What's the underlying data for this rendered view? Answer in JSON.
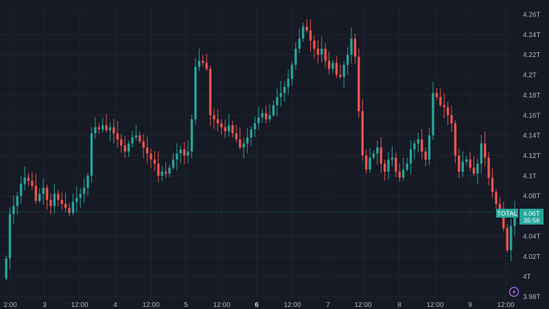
{
  "colors": {
    "background": "#161a25",
    "grid": "#1f2430",
    "up": "#26a69a",
    "down": "#ef5350",
    "axis_text": "#b2b5be",
    "badge_bg": "#26a69a",
    "logo": "#b86bf0"
  },
  "chart_data": {
    "type": "candlestick",
    "title": "",
    "series_label": "TOTAL",
    "last_value_label": "4.06T",
    "countdown": "35:56",
    "last_value": 4.064,
    "y_unit": "T",
    "ylim": [
      3.98,
      4.26
    ],
    "y_ticks": [
      3.98,
      4,
      4.02,
      4.04,
      4.06,
      4.08,
      4.1,
      4.12,
      4.14,
      4.16,
      4.18,
      4.2,
      4.22,
      4.24,
      4.26
    ],
    "y_tick_labels": [
      "3.98T",
      "4T",
      "4.02T",
      "4.04T",
      "4.06T",
      "4.08T",
      "4.1T",
      "4.12T",
      "4.14T",
      "4.16T",
      "4.18T",
      "4.2T",
      "4.22T",
      "4.24T",
      "4.26T"
    ],
    "x_tick_labels": [
      "2:00",
      "3",
      "12:00",
      "4",
      "12:00",
      "5",
      "12:00",
      "6",
      "12:00",
      "7",
      "12:00",
      "8",
      "12:00",
      "9",
      "12:00"
    ],
    "x_tick_bold": [
      false,
      false,
      false,
      false,
      false,
      false,
      false,
      true,
      false,
      false,
      false,
      false,
      false,
      false,
      false
    ],
    "grid": true,
    "close_series": [
      4.018,
      4.062,
      4.07,
      4.08,
      4.092,
      4.098,
      4.095,
      4.09,
      4.075,
      4.082,
      4.088,
      4.076,
      4.07,
      4.082,
      4.076,
      4.072,
      4.068,
      4.063,
      4.074,
      4.078,
      4.082,
      4.088,
      4.1,
      4.142,
      4.148,
      4.146,
      4.15,
      4.145,
      4.148,
      4.142,
      4.136,
      4.13,
      4.124,
      4.132,
      4.138,
      4.14,
      4.134,
      4.128,
      4.122,
      4.116,
      4.112,
      4.1,
      4.104,
      4.102,
      4.108,
      4.116,
      4.122,
      4.126,
      4.12,
      4.124,
      4.156,
      4.208,
      4.214,
      4.212,
      4.206,
      4.16,
      4.156,
      4.152,
      4.148,
      4.144,
      4.15,
      4.142,
      4.136,
      4.128,
      4.132,
      4.138,
      4.146,
      4.152,
      4.158,
      4.162,
      4.156,
      4.16,
      4.17,
      4.178,
      4.182,
      4.188,
      4.196,
      4.21,
      4.226,
      4.236,
      4.248,
      4.244,
      4.234,
      4.226,
      4.22,
      4.226,
      4.214,
      4.206,
      4.212,
      4.2,
      4.198,
      4.21,
      4.22,
      4.236,
      4.218,
      4.164,
      4.12,
      4.106,
      4.118,
      4.122,
      4.128,
      4.112,
      4.104,
      4.116,
      4.118,
      4.104,
      4.098,
      4.106,
      4.112,
      4.126,
      4.132,
      4.136,
      4.124,
      4.116,
      4.14,
      4.182,
      4.178,
      4.17,
      4.168,
      4.16,
      4.152,
      4.12,
      4.104,
      4.114,
      4.116,
      4.108,
      4.102,
      4.112,
      4.132,
      4.118,
      4.098,
      4.084,
      4.072,
      4.064,
      4.048,
      4.026,
      4.05,
      4.064
    ]
  }
}
